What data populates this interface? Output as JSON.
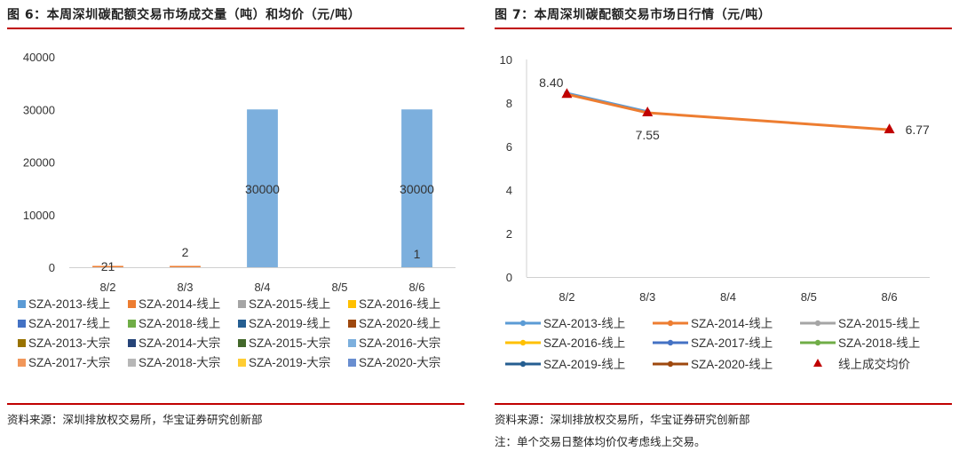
{
  "left": {
    "title": "图 6：本周深圳碳配额交易市场成交量（吨）和均价（元/吨）",
    "source": "资料来源：深圳排放权交易所，华宝证券研究创新部"
  },
  "right": {
    "title": "图 7：本周深圳碳配额交易市场日行情（元/吨）",
    "source": "资料来源：深圳排放权交易所，华宝证券研究创新部",
    "note": "注：单个交易日整体均价仅考虑线上交易。"
  },
  "colors": {
    "rule": "#c00000"
  },
  "chart_data": [
    {
      "type": "bar",
      "categories": [
        "8/2",
        "8/3",
        "8/4",
        "8/5",
        "8/6"
      ],
      "ylim": [
        0,
        40000
      ],
      "yticks": [
        0,
        10000,
        20000,
        30000,
        40000
      ],
      "grid": false,
      "legend_position": "bottom",
      "series": [
        {
          "name": "SZA-2013-线上",
          "color": "#5b9bd5",
          "values": [
            0,
            0,
            0,
            0,
            0
          ]
        },
        {
          "name": "SZA-2014-线上",
          "color": "#ed7d31",
          "values": [
            21,
            2,
            0,
            0,
            0
          ]
        },
        {
          "name": "SZA-2015-线上",
          "color": "#a5a5a5",
          "values": [
            0,
            0,
            0,
            0,
            0
          ]
        },
        {
          "name": "SZA-2016-线上",
          "color": "#ffc000",
          "values": [
            0,
            0,
            0,
            0,
            0
          ]
        },
        {
          "name": "SZA-2017-线上",
          "color": "#4472c4",
          "values": [
            0,
            0,
            0,
            0,
            0
          ]
        },
        {
          "name": "SZA-2018-线上",
          "color": "#70ad47",
          "values": [
            0,
            0,
            0,
            0,
            1
          ]
        },
        {
          "name": "SZA-2019-线上",
          "color": "#255e91",
          "values": [
            0,
            0,
            0,
            0,
            0
          ]
        },
        {
          "name": "SZA-2020-线上",
          "color": "#9e480e",
          "values": [
            0,
            0,
            0,
            0,
            0
          ]
        },
        {
          "name": "SZA-2013-大宗",
          "color": "#997300",
          "values": [
            0,
            0,
            0,
            0,
            0
          ]
        },
        {
          "name": "SZA-2014-大宗",
          "color": "#264478",
          "values": [
            0,
            0,
            0,
            0,
            0
          ]
        },
        {
          "name": "SZA-2015-大宗",
          "color": "#43682b",
          "values": [
            0,
            0,
            0,
            0,
            0
          ]
        },
        {
          "name": "SZA-2016-大宗",
          "color": "#7cafdd",
          "values": [
            0,
            0,
            30000,
            0,
            30000
          ]
        },
        {
          "name": "SZA-2017-大宗",
          "color": "#f1975a",
          "values": [
            0,
            0,
            0,
            0,
            0
          ]
        },
        {
          "name": "SZA-2018-大宗",
          "color": "#b7b7b7",
          "values": [
            0,
            0,
            0,
            0,
            0
          ]
        },
        {
          "name": "SZA-2019-大宗",
          "color": "#ffcd33",
          "values": [
            0,
            0,
            0,
            0,
            0
          ]
        },
        {
          "name": "SZA-2020-大宗",
          "color": "#698ed0",
          "values": [
            0,
            0,
            0,
            0,
            0
          ]
        }
      ],
      "data_labels": [
        {
          "category": "8/2",
          "series": "SZA-2014-线上",
          "text": "21"
        },
        {
          "category": "8/3",
          "series": "SZA-2014-线上",
          "text": "2"
        },
        {
          "category": "8/4",
          "series": "SZA-2016-大宗",
          "text": "30000"
        },
        {
          "category": "8/6",
          "series": "SZA-2016-大宗",
          "text": "30000"
        },
        {
          "category": "8/6",
          "series": "SZA-2018-线上",
          "text": "1"
        }
      ]
    },
    {
      "type": "line",
      "categories": [
        "8/2",
        "8/3",
        "8/4",
        "8/5",
        "8/6"
      ],
      "ylim": [
        0,
        10
      ],
      "yticks": [
        0,
        2,
        4,
        6,
        8,
        10
      ],
      "grid": false,
      "legend_position": "bottom",
      "series": [
        {
          "name": "SZA-2013-线上",
          "color": "#5b9bd5",
          "values": [
            8.45,
            7.6,
            null,
            null,
            null
          ]
        },
        {
          "name": "SZA-2014-线上",
          "color": "#ed7d31",
          "values": [
            8.4,
            7.55,
            null,
            null,
            6.77
          ]
        },
        {
          "name": "SZA-2015-线上",
          "color": "#a5a5a5",
          "values": [
            null,
            null,
            null,
            null,
            null
          ]
        },
        {
          "name": "SZA-2016-线上",
          "color": "#ffc000",
          "values": [
            null,
            null,
            null,
            null,
            null
          ]
        },
        {
          "name": "SZA-2017-线上",
          "color": "#4472c4",
          "values": [
            null,
            null,
            null,
            null,
            null
          ]
        },
        {
          "name": "SZA-2018-线上",
          "color": "#70ad47",
          "values": [
            null,
            null,
            null,
            null,
            6.77
          ]
        },
        {
          "name": "SZA-2019-线上",
          "color": "#255e91",
          "values": [
            null,
            null,
            null,
            null,
            null
          ]
        },
        {
          "name": "SZA-2020-线上",
          "color": "#9e480e",
          "values": [
            null,
            null,
            null,
            null,
            null
          ]
        }
      ],
      "marker_series": {
        "name": "线上成交均价",
        "color": "#c00000",
        "values": [
          8.4,
          7.55,
          null,
          null,
          6.77
        ]
      },
      "data_labels": [
        {
          "category": "8/2",
          "text": "8.40"
        },
        {
          "category": "8/3",
          "text": "7.55"
        },
        {
          "category": "8/6",
          "text": "6.77"
        }
      ]
    }
  ]
}
